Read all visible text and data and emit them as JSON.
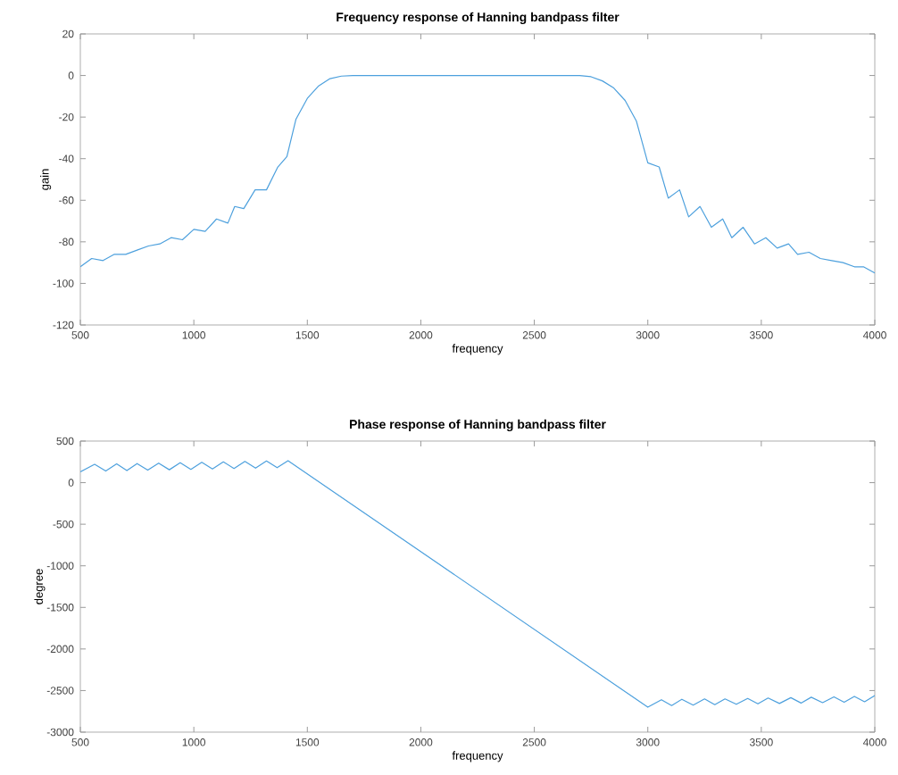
{
  "chart_data": [
    {
      "type": "line",
      "title": "Frequency response of Hanning bandpass filter",
      "xlabel": "frequency",
      "ylabel": "gain",
      "xlim": [
        500,
        4000
      ],
      "xticks": [
        500,
        1000,
        1500,
        2000,
        2500,
        3000,
        3500,
        4000
      ],
      "ylim": [
        -120,
        20
      ],
      "yticks": [
        -120,
        -100,
        -80,
        -60,
        -40,
        -20,
        0,
        20
      ],
      "grid": false,
      "series": [
        {
          "color": "#4da0dd",
          "x": [
            500,
            550,
            600,
            650,
            700,
            750,
            800,
            850,
            900,
            950,
            1000,
            1050,
            1100,
            1150,
            1180,
            1220,
            1270,
            1320,
            1370,
            1410,
            1450,
            1500,
            1550,
            1600,
            1650,
            1700,
            2000,
            2400,
            2700,
            2750,
            2800,
            2850,
            2900,
            2950,
            3000,
            3050,
            3090,
            3140,
            3180,
            3230,
            3280,
            3330,
            3370,
            3420,
            3470,
            3520,
            3570,
            3620,
            3660,
            3710,
            3760,
            3810,
            3860,
            3910,
            3950,
            4000
          ],
          "values": [
            -92,
            -88,
            -89,
            -86,
            -86,
            -84,
            -82,
            -81,
            -78,
            -79,
            -74,
            -75,
            -69,
            -71,
            -63,
            -64,
            -55,
            -55,
            -44,
            -39,
            -21,
            -11,
            -5,
            -1.5,
            -0.3,
            0,
            0,
            0,
            0,
            -0.6,
            -2.6,
            -6,
            -12,
            -22,
            -42,
            -44,
            -59,
            -55,
            -68,
            -63,
            -73,
            -69,
            -78,
            -73,
            -81,
            -78,
            -83,
            -81,
            -86,
            -85,
            -88,
            -89,
            -90,
            -92,
            -92,
            -95
          ]
        }
      ]
    },
    {
      "type": "line",
      "title": "Phase response of Hanning bandpass filter",
      "xlabel": "frequency",
      "ylabel": "degree",
      "xlim": [
        500,
        4000
      ],
      "xticks": [
        500,
        1000,
        1500,
        2000,
        2500,
        3000,
        3500,
        4000
      ],
      "ylim": [
        -3000,
        500
      ],
      "yticks": [
        -3000,
        -2500,
        -2000,
        -1500,
        -1000,
        -500,
        0,
        500
      ],
      "grid": false,
      "series": [
        {
          "color": "#4da0dd",
          "x": [
            500,
            563,
            612,
            660,
            705,
            750,
            797,
            845,
            892,
            940,
            987,
            1035,
            1082,
            1130,
            1177,
            1225,
            1272,
            1320,
            1367,
            1415,
            3000,
            3060,
            3105,
            3150,
            3200,
            3250,
            3295,
            3340,
            3390,
            3440,
            3485,
            3530,
            3580,
            3630,
            3675,
            3720,
            3770,
            3820,
            3865,
            3910,
            3955,
            4000
          ],
          "values": [
            130,
            220,
            140,
            225,
            145,
            230,
            150,
            235,
            155,
            240,
            160,
            245,
            165,
            250,
            170,
            255,
            175,
            260,
            180,
            265,
            -2700,
            -2610,
            -2680,
            -2605,
            -2675,
            -2600,
            -2670,
            -2600,
            -2665,
            -2595,
            -2660,
            -2590,
            -2655,
            -2585,
            -2650,
            -2580,
            -2645,
            -2575,
            -2640,
            -2570,
            -2635,
            -2560
          ]
        }
      ]
    }
  ]
}
